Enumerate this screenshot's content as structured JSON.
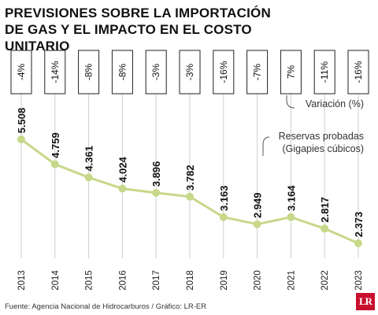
{
  "title": "PREVISIONES SOBRE LA IMPORTACIÓN DE GAS Y EL IMPACTO EN EL COSTO UNITARIO",
  "variation_legend": "Variación (%)",
  "series_legend": [
    "Reservas probadas",
    "(Gigapies cúbicos)"
  ],
  "source": "Fuente: Agencia Nacional de Hidrocarburos / Gráfico: LR-ER",
  "logo_text": "LR",
  "colors": {
    "series": "#c7d88a",
    "logo": "#c8102e"
  },
  "chart_data": {
    "type": "line",
    "title": "PREVISIONES SOBRE LA IMPORTACIÓN DE GAS Y EL IMPACTO EN EL COSTO UNITARIO",
    "x": [
      "2013",
      "2014",
      "2015",
      "2016",
      "2017",
      "2018",
      "2019",
      "2020",
      "2021",
      "2022",
      "2023"
    ],
    "series": [
      {
        "name": "Reservas probadas (Gigapies cúbicos)",
        "values": [
          5.508,
          4.759,
          4.361,
          4.024,
          3.896,
          3.782,
          3.163,
          2.949,
          3.164,
          2.817,
          2.373
        ],
        "labels": [
          "5.508",
          "4.759",
          "4.361",
          "4.024",
          "3.896",
          "3.782",
          "3.163",
          "2.949",
          "3.164",
          "2.817",
          "2.373"
        ]
      }
    ],
    "variation": {
      "name": "Variación (%)",
      "labels": [
        "-4%",
        "-14%",
        "-8%",
        "-8%",
        "-3%",
        "-3%",
        "-16%",
        "-7%",
        "7%",
        "-11%",
        "-16%"
      ]
    },
    "ylim": [
      2.373,
      5.508
    ],
    "grid": "vertical",
    "legend": "right"
  }
}
